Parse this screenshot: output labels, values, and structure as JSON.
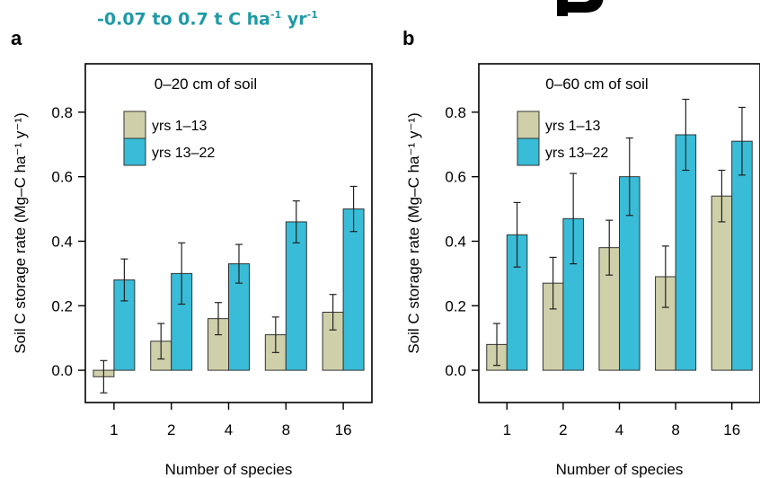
{
  "headline": {
    "main": "-0.07 to 0.7 t C ha",
    "sup1": "-1",
    "mid": " yr",
    "sup2": "-1"
  },
  "chart_data": [
    {
      "type": "bar",
      "panel_label": "a",
      "title": "0–20 cm of soil",
      "xlabel": "Number of species",
      "ylabel": "Soil C storage rate (Mg–C ha⁻¹ y⁻¹)",
      "categories": [
        "1",
        "2",
        "4",
        "8",
        "16"
      ],
      "ylim": [
        -0.1,
        0.95
      ],
      "yticks": [
        0.0,
        0.2,
        0.4,
        0.6,
        0.8
      ],
      "ytick_labels": [
        "0.0",
        "0.2",
        "0.4",
        "0.6",
        "0.8"
      ],
      "legend": "top-left",
      "series": [
        {
          "name": "yrs 1–13",
          "color": "#cfd0aa",
          "values": [
            -0.02,
            0.09,
            0.16,
            0.11,
            0.18
          ],
          "error": [
            0.05,
            0.055,
            0.05,
            0.055,
            0.055
          ]
        },
        {
          "name": "yrs 13–22",
          "color": "#38bcd7",
          "values": [
            0.28,
            0.3,
            0.33,
            0.46,
            0.5
          ],
          "error": [
            0.065,
            0.095,
            0.06,
            0.065,
            0.07
          ]
        }
      ]
    },
    {
      "type": "bar",
      "panel_label": "b",
      "title": "0–60 cm of soil",
      "xlabel": "Number of species",
      "ylabel": "Soil C storage rate (Mg–C ha⁻¹ y⁻¹)",
      "categories": [
        "1",
        "2",
        "4",
        "8",
        "16"
      ],
      "ylim": [
        -0.1,
        0.95
      ],
      "yticks": [
        0.0,
        0.2,
        0.4,
        0.6,
        0.8
      ],
      "ytick_labels": [
        "0.0",
        "0.2",
        "0.4",
        "0.6",
        "0.8"
      ],
      "legend": "top-left",
      "series": [
        {
          "name": "yrs 1–13",
          "color": "#cfd0aa",
          "values": [
            0.08,
            0.27,
            0.38,
            0.29,
            0.54
          ],
          "error": [
            0.065,
            0.08,
            0.085,
            0.095,
            0.08
          ]
        },
        {
          "name": "yrs 13–22",
          "color": "#38bcd7",
          "values": [
            0.42,
            0.47,
            0.6,
            0.73,
            0.71
          ],
          "error": [
            0.1,
            0.14,
            0.12,
            0.11,
            0.105
          ]
        }
      ]
    }
  ]
}
